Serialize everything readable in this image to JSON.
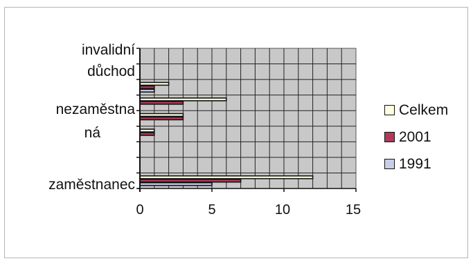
{
  "chart_data": {
    "type": "bar",
    "orientation": "horizontal",
    "categories": [
      "zaměstnanec",
      "",
      "",
      "nezaměstna ná",
      "",
      "",
      "invalidní důchod",
      "",
      ""
    ],
    "category_labels": [
      "zaměstnanec",
      "nezaměstna",
      "ná",
      "důchod",
      "invalidní"
    ],
    "series": [
      {
        "name": "Celkem",
        "color": "#ffffe0",
        "values": [
          12,
          0,
          0,
          1,
          3,
          6,
          2,
          0,
          0
        ]
      },
      {
        "name": "2001",
        "color": "#b03a5a",
        "values": [
          7,
          0,
          0,
          1,
          3,
          3,
          1,
          0,
          0
        ]
      },
      {
        "name": "1991",
        "color": "#c8cde8",
        "values": [
          5,
          0,
          0,
          0,
          0,
          0,
          1,
          0,
          0
        ]
      }
    ],
    "xlim": [
      0,
      15
    ],
    "x_ticks": [
      "0",
      "5",
      "10",
      "15"
    ],
    "grid": true,
    "legend_position": "right",
    "plot_bg": "#c8c8c8"
  }
}
